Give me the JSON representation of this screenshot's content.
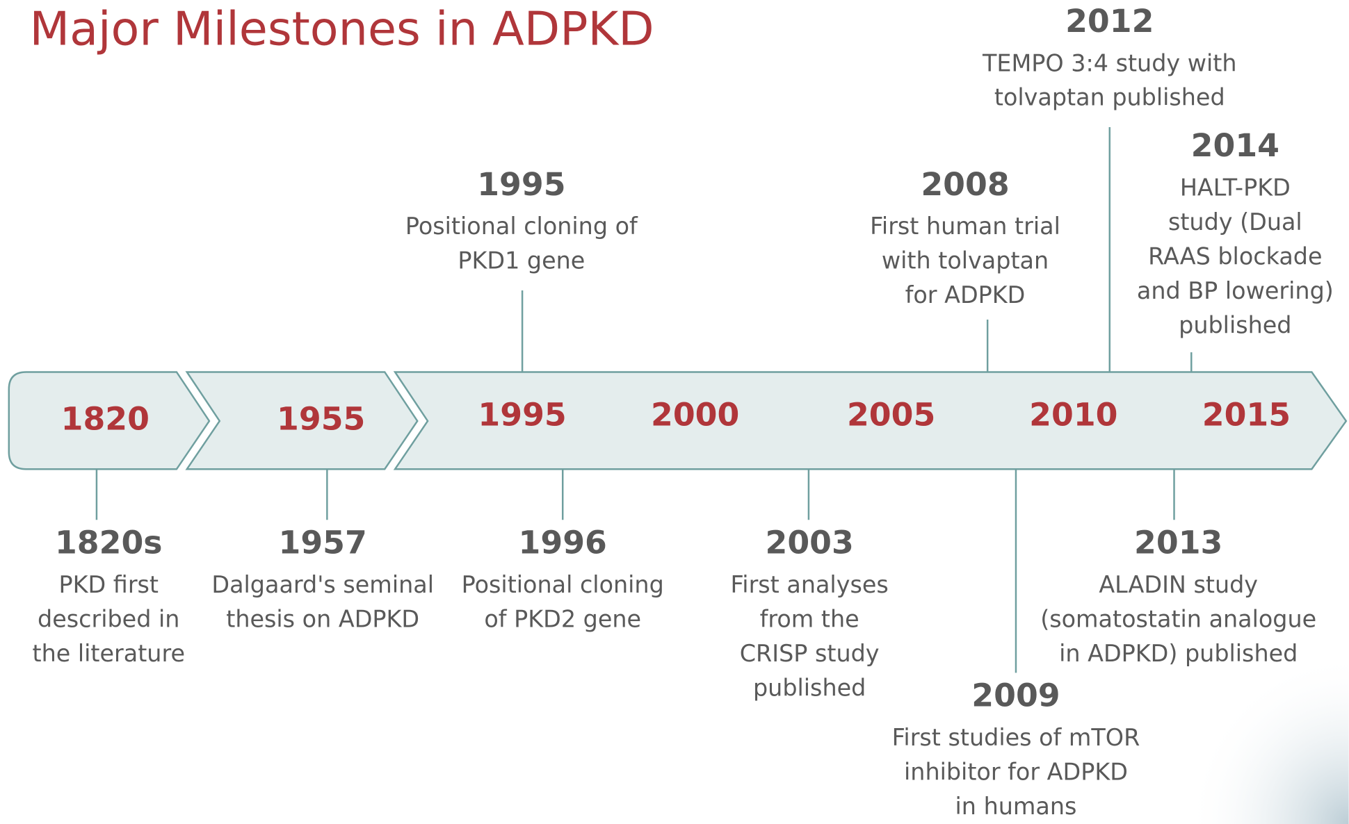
{
  "title": "Major Milestones in ADPKD",
  "timeline_labels": [
    "1820",
    "1955",
    "1995",
    "2000",
    "2005",
    "2010",
    "2015"
  ],
  "events": [
    {
      "year": "1995",
      "lines": [
        "Positional cloning of",
        "PKD1 gene"
      ]
    },
    {
      "year": "2008",
      "lines": [
        "First human trial",
        "with tolvaptan",
        "for ADPKD"
      ]
    },
    {
      "year": "2012",
      "lines": [
        "TEMPO 3:4 study with",
        "tolvaptan published"
      ]
    },
    {
      "year": "2014",
      "lines": [
        "HALT-PKD",
        "study (Dual",
        "RAAS blockade",
        "and BP lowering)",
        "published"
      ]
    },
    {
      "year": "1820s",
      "lines": [
        "PKD first",
        "described in",
        "the literature"
      ]
    },
    {
      "year": "1957",
      "lines": [
        "Dalgaard's seminal",
        "thesis on ADPKD"
      ]
    },
    {
      "year": "1996",
      "lines": [
        "Positional cloning",
        "of PKD2 gene"
      ]
    },
    {
      "year": "2003",
      "lines": [
        "First analyses",
        "from the",
        "CRISP study",
        "published"
      ]
    },
    {
      "year": "2009",
      "lines": [
        "First studies of mTOR",
        "inhibitor for ADPKD",
        "in humans"
      ]
    },
    {
      "year": "2013",
      "lines": [
        "ALADIN study",
        "(somatostatin analogue",
        "in ADPKD) published"
      ]
    }
  ]
}
